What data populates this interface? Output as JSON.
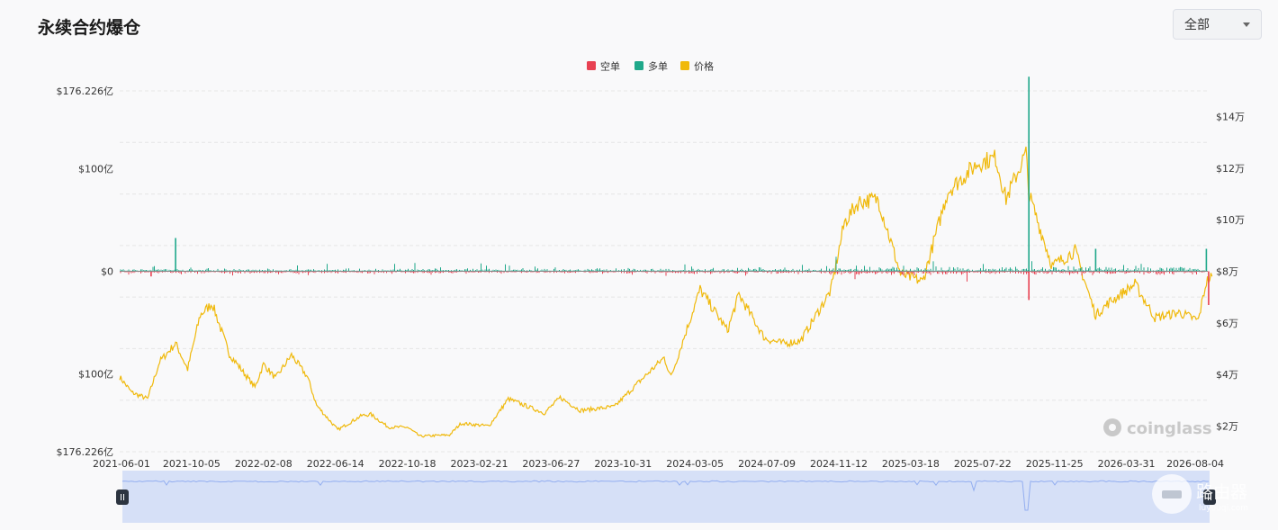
{
  "header": {
    "title": "永续合约爆仓",
    "range_label": "全部"
  },
  "legend": {
    "short_label": "空单",
    "long_label": "多单",
    "price_label": "价格"
  },
  "colors": {
    "short": "#e84152",
    "long": "#1fa88a",
    "price": "#f0b90b",
    "grid": "#e6e6e6",
    "slider_fill": "#d6e0f7",
    "slider_line": "#93aef0",
    "handle": "#2c3440"
  },
  "watermark": "coinglass",
  "site_badge": {
    "title": "路由器",
    "subtitle": "luyouqi.com"
  },
  "chart_data": {
    "type": "bar+line",
    "y_left": {
      "ticks": [
        "$176.226亿",
        "$100亿",
        "$0",
        "$100亿",
        "$176.226亿"
      ],
      "range": [
        -176.226,
        176.226
      ],
      "unit": "亿 USD"
    },
    "y_right": {
      "ticks": [
        "$14万",
        "$12万",
        "$10万",
        "$8万",
        "$6万",
        "$4万",
        "$2万"
      ],
      "range": [
        10000,
        150000
      ]
    },
    "x_ticks": [
      "2021-06-01",
      "2021-10-05",
      "2022-02-08",
      "2022-06-14",
      "2022-10-18",
      "2023-02-21",
      "2023-06-27",
      "2023-10-31",
      "2024-03-05",
      "2024-07-09",
      "2024-11-12",
      "2025-03-18",
      "2025-07-22",
      "2025-11-25",
      "2026-03-31",
      "2026-08-04"
    ],
    "x_range": [
      "2021-06-01",
      "2026-08-30"
    ],
    "price_series": {
      "name": "价格",
      "points": [
        [
          "2021-06-01",
          39000
        ],
        [
          "2021-06-22",
          33000
        ],
        [
          "2021-07-20",
          30500
        ],
        [
          "2021-08-10",
          45000
        ],
        [
          "2021-09-07",
          52000
        ],
        [
          "2021-09-28",
          42000
        ],
        [
          "2021-10-20",
          63000
        ],
        [
          "2021-11-10",
          67500
        ],
        [
          "2021-12-10",
          48000
        ],
        [
          "2022-01-24",
          35000
        ],
        [
          "2022-02-08",
          44000
        ],
        [
          "2022-03-01",
          38500
        ],
        [
          "2022-03-29",
          47500
        ],
        [
          "2022-04-26",
          39000
        ],
        [
          "2022-05-12",
          28000
        ],
        [
          "2022-06-18",
          18500
        ],
        [
          "2022-07-30",
          24000
        ],
        [
          "2022-08-15",
          24500
        ],
        [
          "2022-09-15",
          19500
        ],
        [
          "2022-10-18",
          19500
        ],
        [
          "2022-11-09",
          16000
        ],
        [
          "2022-12-31",
          16500
        ],
        [
          "2023-01-20",
          21000
        ],
        [
          "2023-03-10",
          20000
        ],
        [
          "2023-04-13",
          30500
        ],
        [
          "2023-06-15",
          25000
        ],
        [
          "2023-07-13",
          31000
        ],
        [
          "2023-08-17",
          26000
        ],
        [
          "2023-10-16",
          27500
        ],
        [
          "2023-11-30",
          37500
        ],
        [
          "2024-01-11",
          46500
        ],
        [
          "2024-01-23",
          39000
        ],
        [
          "2024-03-14",
          73000
        ],
        [
          "2024-05-01",
          57000
        ],
        [
          "2024-05-21",
          71000
        ],
        [
          "2024-07-05",
          54000
        ],
        [
          "2024-08-05",
          52000
        ],
        [
          "2024-09-06",
          53000
        ],
        [
          "2024-10-29",
          72500
        ],
        [
          "2024-11-22",
          99000
        ],
        [
          "2024-12-17",
          107000
        ],
        [
          "2025-01-20",
          108000
        ],
        [
          "2025-02-28",
          79000
        ],
        [
          "2025-04-08",
          76000
        ],
        [
          "2025-05-22",
          111000
        ],
        [
          "2025-07-14",
          122000
        ],
        [
          "2025-08-14",
          124000
        ],
        [
          "2025-09-01",
          108000
        ],
        [
          "2025-10-06",
          126000
        ],
        [
          "2025-10-11",
          110000
        ],
        [
          "2025-11-21",
          82000
        ],
        [
          "2025-12-31",
          88000
        ],
        [
          "2026-02-05",
          63000
        ],
        [
          "2026-03-01",
          68000
        ],
        [
          "2026-04-15",
          75000
        ],
        [
          "2026-05-20",
          62000
        ],
        [
          "2026-07-01",
          64000
        ],
        [
          "2026-08-04",
          61000
        ],
        [
          "2026-08-18",
          76000
        ],
        [
          "2026-08-28",
          78000
        ]
      ]
    },
    "liquidation_spikes": {
      "long": [
        [
          "2021-09-07",
          32.5
        ],
        [
          "2025-10-11",
          190.0
        ],
        [
          "2026-02-05",
          22.0
        ],
        [
          "2026-08-18",
          22.0
        ]
      ],
      "short": [
        [
          "2021-07-26",
          5.0
        ],
        [
          "2025-10-11",
          28.0
        ],
        [
          "2026-08-22",
          33.0
        ]
      ]
    }
  }
}
